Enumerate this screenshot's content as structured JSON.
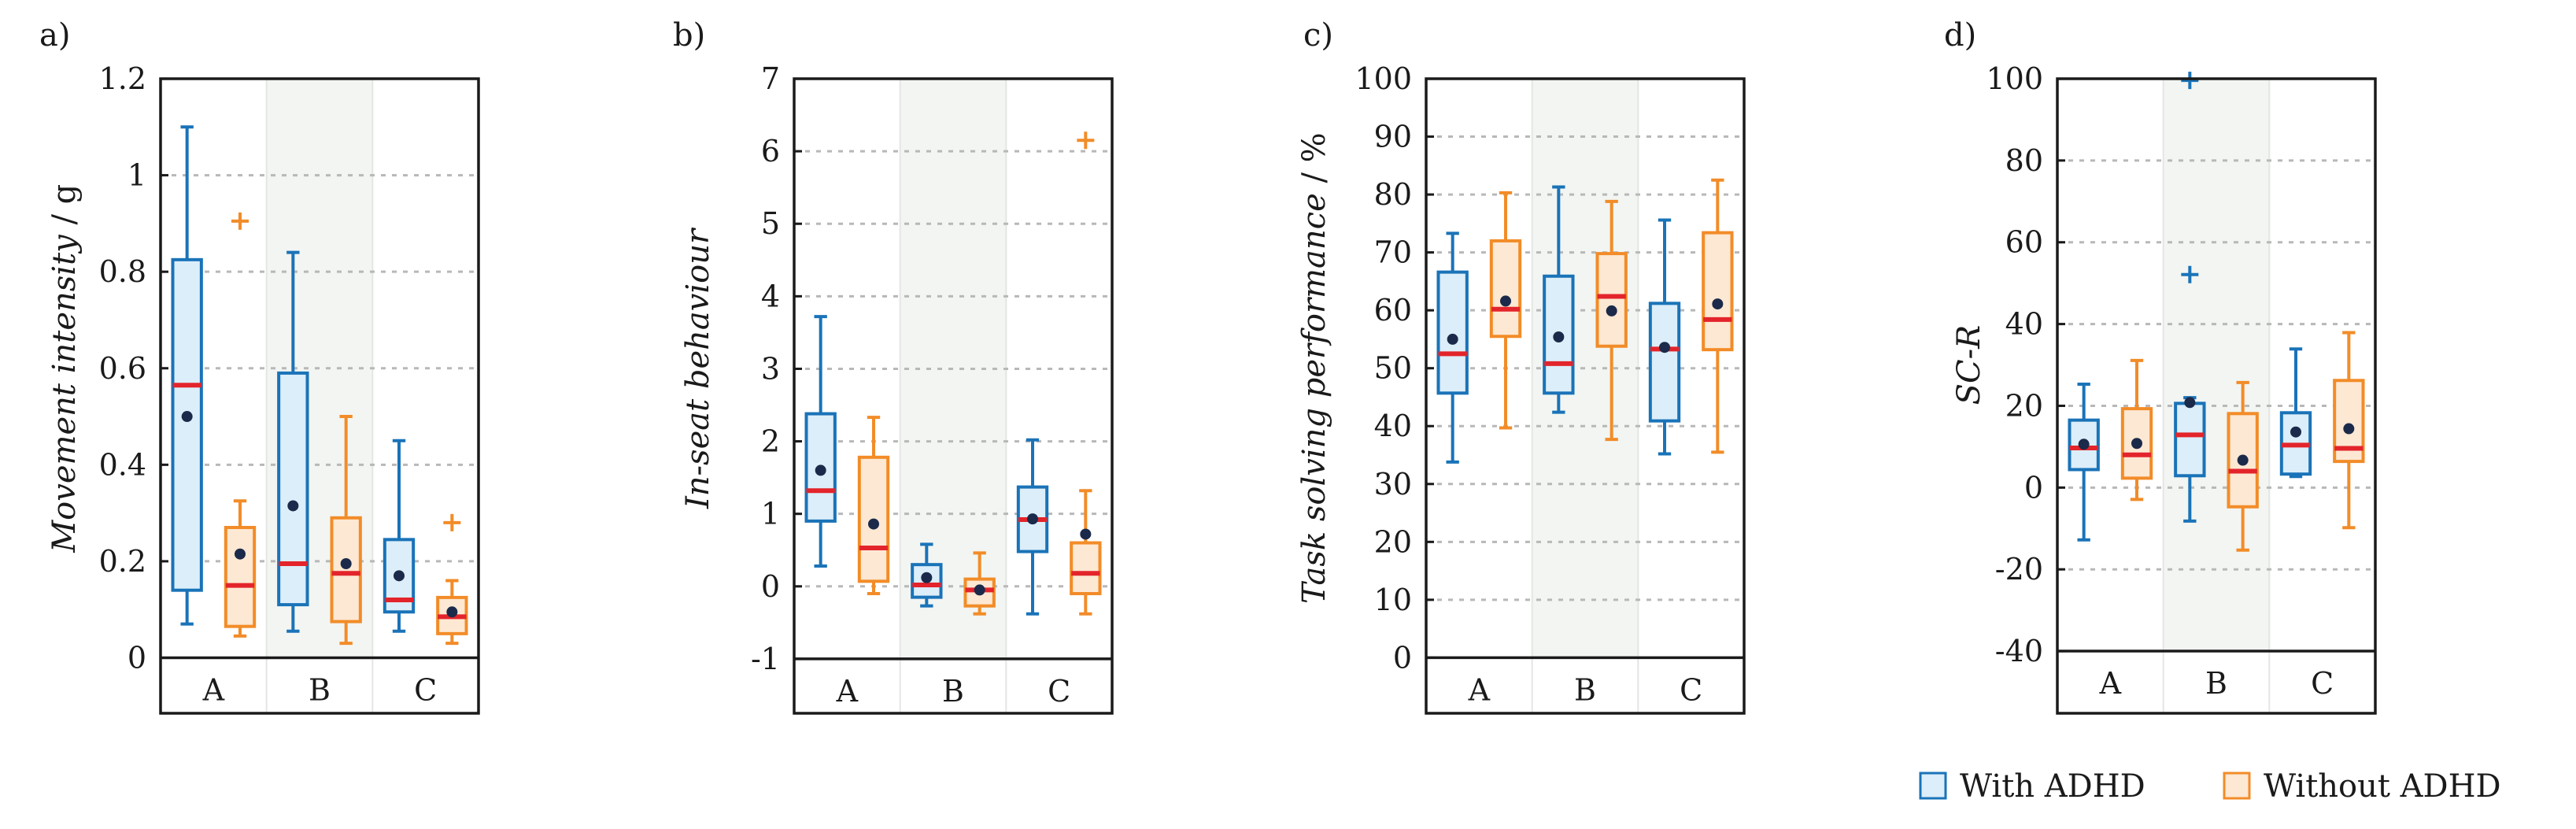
{
  "colors": {
    "adhd_stroke": "#1a73b8",
    "adhd_fill": "#dceef9",
    "noadhd_stroke": "#f28c28",
    "noadhd_fill": "#fde8d3",
    "median": "#e3242b",
    "mean": "#1b2a4a",
    "group_b_bg": "#f2f5f2",
    "grid": "#b8b8b8"
  },
  "legend": {
    "with_adhd": "With ADHD",
    "without_adhd": "Without ADHD"
  },
  "chart_data": [
    {
      "type": "box",
      "panel_label": "a)",
      "ylabel_italic": "Movement intensity",
      "ylabel_unit": " / g",
      "ylim": [
        0,
        1.2
      ],
      "ylim_display": [
        -0.115,
        1.2
      ],
      "yticks": [
        0,
        0.2,
        0.4,
        0.6,
        0.8,
        1,
        1.2
      ],
      "ytick_labels": [
        "0",
        "0.2",
        "0.4",
        "0.6",
        "0.8",
        "1",
        "1.2"
      ],
      "grid_values": [
        0.2,
        0.4,
        0.6,
        0.8,
        1
      ],
      "categories": [
        "A",
        "B",
        "C"
      ],
      "series": [
        {
          "name": "With ADHD",
          "boxes": [
            {
              "category": "A",
              "whisker_low": 0.07,
              "q1": 0.14,
              "median": 0.565,
              "q3": 0.825,
              "whisker_high": 1.1,
              "mean": 0.5,
              "outliers": []
            },
            {
              "category": "B",
              "whisker_low": 0.055,
              "q1": 0.11,
              "median": 0.195,
              "q3": 0.59,
              "whisker_high": 0.84,
              "mean": 0.315,
              "outliers": []
            },
            {
              "category": "C",
              "whisker_low": 0.055,
              "q1": 0.095,
              "median": 0.12,
              "q3": 0.245,
              "whisker_high": 0.45,
              "mean": 0.17,
              "outliers": []
            }
          ]
        },
        {
          "name": "Without ADHD",
          "boxes": [
            {
              "category": "A",
              "whisker_low": 0.045,
              "q1": 0.065,
              "median": 0.15,
              "q3": 0.27,
              "whisker_high": 0.325,
              "mean": 0.215,
              "outliers": [
                0.905
              ]
            },
            {
              "category": "B",
              "whisker_low": 0.03,
              "q1": 0.075,
              "median": 0.175,
              "q3": 0.29,
              "whisker_high": 0.5,
              "mean": 0.195,
              "outliers": []
            },
            {
              "category": "C",
              "whisker_low": 0.03,
              "q1": 0.05,
              "median": 0.085,
              "q3": 0.125,
              "whisker_high": 0.16,
              "mean": 0.095,
              "outliers": [
                0.28
              ]
            }
          ]
        }
      ]
    },
    {
      "type": "box",
      "panel_label": "b)",
      "ylabel_italic": "In-seat behaviour",
      "ylabel_unit": "",
      "ylim": [
        -1,
        7
      ],
      "ylim_display": [
        -1.75,
        7
      ],
      "yticks": [
        -1,
        0,
        1,
        2,
        3,
        4,
        5,
        6,
        7
      ],
      "ytick_labels": [
        "-1",
        "0",
        "1",
        "2",
        "3",
        "4",
        "5",
        "6",
        "7"
      ],
      "grid_values": [
        0,
        1,
        2,
        3,
        4,
        5,
        6
      ],
      "categories": [
        "A",
        "B",
        "C"
      ],
      "series": [
        {
          "name": "With ADHD",
          "boxes": [
            {
              "category": "A",
              "whisker_low": 0.28,
              "q1": 0.9,
              "median": 1.32,
              "q3": 2.38,
              "whisker_high": 3.72,
              "mean": 1.6,
              "outliers": []
            },
            {
              "category": "B",
              "whisker_low": -0.27,
              "q1": -0.15,
              "median": 0.02,
              "q3": 0.3,
              "whisker_high": 0.58,
              "mean": 0.12,
              "outliers": []
            },
            {
              "category": "C",
              "whisker_low": -0.38,
              "q1": 0.48,
              "median": 0.92,
              "q3": 1.37,
              "whisker_high": 2.02,
              "mean": 0.93,
              "outliers": []
            }
          ]
        },
        {
          "name": "Without ADHD",
          "boxes": [
            {
              "category": "A",
              "whisker_low": -0.1,
              "q1": 0.07,
              "median": 0.53,
              "q3": 1.78,
              "whisker_high": 2.33,
              "mean": 0.86,
              "outliers": []
            },
            {
              "category": "B",
              "whisker_low": -0.38,
              "q1": -0.27,
              "median": -0.05,
              "q3": 0.1,
              "whisker_high": 0.46,
              "mean": -0.05,
              "outliers": []
            },
            {
              "category": "C",
              "whisker_low": -0.38,
              "q1": -0.1,
              "median": 0.18,
              "q3": 0.6,
              "whisker_high": 1.32,
              "mean": 0.72,
              "outliers": [
                6.15
              ]
            }
          ]
        }
      ]
    },
    {
      "type": "box",
      "panel_label": "c)",
      "ylabel_italic": "Task solving performance",
      "ylabel_unit": " / %",
      "ylim": [
        0,
        100
      ],
      "ylim_display": [
        -9.6,
        100
      ],
      "yticks": [
        0,
        10,
        20,
        30,
        40,
        50,
        60,
        70,
        80,
        90,
        100
      ],
      "ytick_labels": [
        "0",
        "10",
        "20",
        "30",
        "40",
        "50",
        "60",
        "70",
        "80",
        "90",
        "100"
      ],
      "grid_values": [
        10,
        20,
        30,
        40,
        50,
        60,
        70,
        80,
        90
      ],
      "categories": [
        "A",
        "B",
        "C"
      ],
      "series": [
        {
          "name": "With ADHD",
          "boxes": [
            {
              "category": "A",
              "whisker_low": 33.8,
              "q1": 45.7,
              "median": 52.5,
              "q3": 66.6,
              "whisker_high": 73.3,
              "mean": 55.0,
              "outliers": []
            },
            {
              "category": "B",
              "whisker_low": 42.4,
              "q1": 45.7,
              "median": 50.8,
              "q3": 65.9,
              "whisker_high": 81.3,
              "mean": 55.4,
              "outliers": []
            },
            {
              "category": "C",
              "whisker_low": 35.2,
              "q1": 40.9,
              "median": 53.3,
              "q3": 61.2,
              "whisker_high": 75.6,
              "mean": 53.6,
              "outliers": []
            }
          ]
        },
        {
          "name": "Without ADHD",
          "boxes": [
            {
              "category": "A",
              "whisker_low": 39.7,
              "q1": 55.5,
              "median": 60.2,
              "q3": 72.0,
              "whisker_high": 80.3,
              "mean": 61.6,
              "outliers": []
            },
            {
              "category": "B",
              "whisker_low": 37.7,
              "q1": 53.8,
              "median": 62.4,
              "q3": 69.8,
              "whisker_high": 78.8,
              "mean": 59.9,
              "outliers": []
            },
            {
              "category": "C",
              "whisker_low": 35.5,
              "q1": 53.2,
              "median": 58.4,
              "q3": 73.4,
              "whisker_high": 82.5,
              "mean": 61.1,
              "outliers": []
            }
          ]
        }
      ]
    },
    {
      "type": "box",
      "panel_label": "d)",
      "ylabel_italic": "SC-R",
      "ylabel_unit": "",
      "ylim": [
        -40,
        100
      ],
      "ylim_display": [
        -55.2,
        100
      ],
      "yticks": [
        -40,
        -20,
        0,
        20,
        40,
        60,
        80,
        100
      ],
      "ytick_labels": [
        "-40",
        "-20",
        "0",
        "20",
        "40",
        "60",
        "80",
        "100"
      ],
      "grid_values": [
        -20,
        0,
        20,
        40,
        60,
        80
      ],
      "categories": [
        "A",
        "B",
        "C"
      ],
      "series": [
        {
          "name": "With ADHD",
          "boxes": [
            {
              "category": "A",
              "whisker_low": -12.8,
              "q1": 4.4,
              "median": 9.7,
              "q3": 16.5,
              "whisker_high": 25.3,
              "mean": 10.6,
              "outliers": []
            },
            {
              "category": "B",
              "whisker_low": -8.2,
              "q1": 2.9,
              "median": 12.9,
              "q3": 20.6,
              "whisker_high": 22.0,
              "mean": 20.8,
              "outliers": [
                52.1,
                99.6
              ]
            },
            {
              "category": "C",
              "whisker_low": 2.7,
              "q1": 3.3,
              "median": 10.4,
              "q3": 18.3,
              "whisker_high": 33.9,
              "mean": 13.6,
              "outliers": []
            }
          ]
        },
        {
          "name": "Without ADHD",
          "boxes": [
            {
              "category": "A",
              "whisker_low": -2.9,
              "q1": 2.3,
              "median": 8.0,
              "q3": 19.3,
              "whisker_high": 31.1,
              "mean": 10.8,
              "outliers": []
            },
            {
              "category": "B",
              "whisker_low": -15.3,
              "q1": -4.7,
              "median": 4.0,
              "q3": 18.1,
              "whisker_high": 25.7,
              "mean": 6.7,
              "outliers": []
            },
            {
              "category": "C",
              "whisker_low": -9.8,
              "q1": 6.4,
              "median": 9.6,
              "q3": 26.2,
              "whisker_high": 37.9,
              "mean": 14.4,
              "outliers": []
            }
          ]
        }
      ]
    }
  ]
}
